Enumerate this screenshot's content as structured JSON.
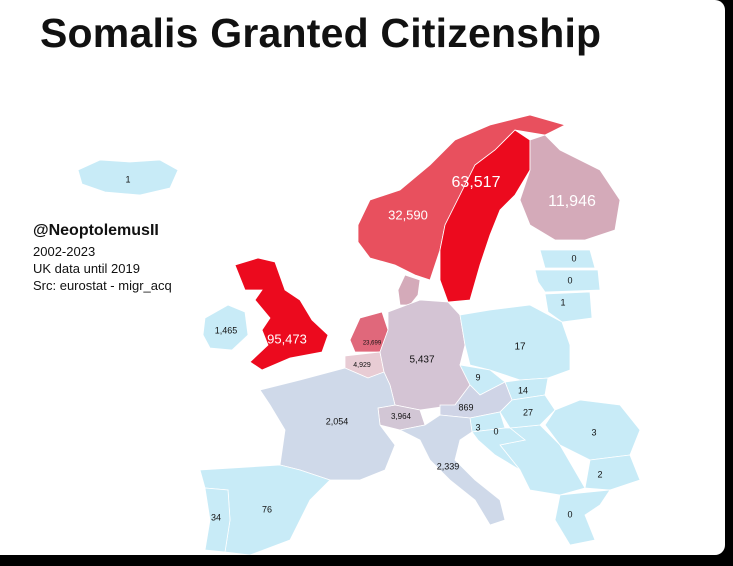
{
  "title": "Somalis Granted Citizenship",
  "author": "@NeoptolemusII",
  "notes": [
    "2002-2023",
    "UK data until 2019",
    "Src: eurostat - migr_acq"
  ],
  "regions": [
    {
      "label": "1",
      "color": "#c8ebf7"
    },
    {
      "label": "1,465",
      "color": "#c8ebf7"
    },
    {
      "label": "95,473",
      "color": "#ec0a1e"
    },
    {
      "label": "32,590",
      "color": "#e8505e"
    },
    {
      "label": "63,517",
      "color": "#ec0a1e"
    },
    {
      "label": "11,946",
      "color": "#d4aab9"
    },
    {
      "label": "0",
      "color": "#c8ebf7"
    },
    {
      "label": "0",
      "color": "#c8ebf7"
    },
    {
      "label": "1",
      "color": "#c8ebf7"
    },
    {
      "label": "23,699",
      "color": "#e0687b"
    },
    {
      "label": "4,929",
      "color": "#e8ccd4"
    },
    {
      "label": "5,437",
      "color": "#d4c4d4"
    },
    {
      "label": "17",
      "color": "#c8ebf7"
    },
    {
      "label": "9",
      "color": "#c8ebf7"
    },
    {
      "label": "14",
      "color": "#c8ebf7"
    },
    {
      "label": "869",
      "color": "#cfd4e6"
    },
    {
      "label": "27",
      "color": "#c8ebf7"
    },
    {
      "label": "3",
      "color": "#c8ebf7"
    },
    {
      "label": "0",
      "color": "#c8ebf7"
    },
    {
      "label": "3,964",
      "color": "#d2c6d5"
    },
    {
      "label": "2,054",
      "color": "#cfd9e9"
    },
    {
      "label": "2,339",
      "color": "#cfd9e9"
    },
    {
      "label": "3",
      "color": "#c8ebf7"
    },
    {
      "label": "2",
      "color": "#c8ebf7"
    },
    {
      "label": "0",
      "color": "#c8ebf7"
    },
    {
      "label": "76",
      "color": "#c8ebf7"
    },
    {
      "label": "34",
      "color": "#c8ebf7"
    }
  ]
}
